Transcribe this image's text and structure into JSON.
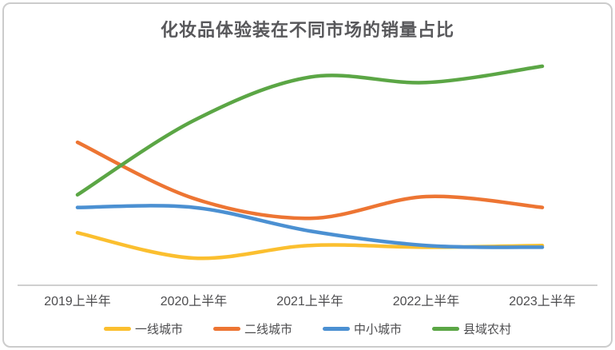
{
  "card": {
    "background": "#ffffff",
    "border_color": "#cccccc"
  },
  "chart_data": {
    "type": "line",
    "title": "化妆品体验装在不同市场的销量占比",
    "categories": [
      "2019上半年",
      "2020上半年",
      "2021上半年",
      "2022上半年",
      "2023上半年"
    ],
    "series": [
      {
        "name": "一线城市",
        "color": "#FBBF2F",
        "values": [
          14.5,
          7.5,
          11,
          10.5,
          11
        ]
      },
      {
        "name": "二线城市",
        "color": "#ED7533",
        "values": [
          39.5,
          24,
          18.5,
          24.5,
          21.5
        ]
      },
      {
        "name": "中小城市",
        "color": "#4B90D2",
        "values": [
          21.5,
          21.5,
          15,
          11,
          10.5
        ]
      },
      {
        "name": "县域农村",
        "color": "#5BA645",
        "values": [
          25,
          45.5,
          57.5,
          56,
          60.5
        ]
      }
    ],
    "unit": "%",
    "smooth": true,
    "line_width": 4.5,
    "y_axis_visible": false,
    "x_axis_line_color": "#cfcfcf",
    "label_color": "#4d4d4f",
    "title_color": "#58585b",
    "legend_position": "bottom",
    "ylim": [
      0,
      66
    ],
    "grid": false
  }
}
